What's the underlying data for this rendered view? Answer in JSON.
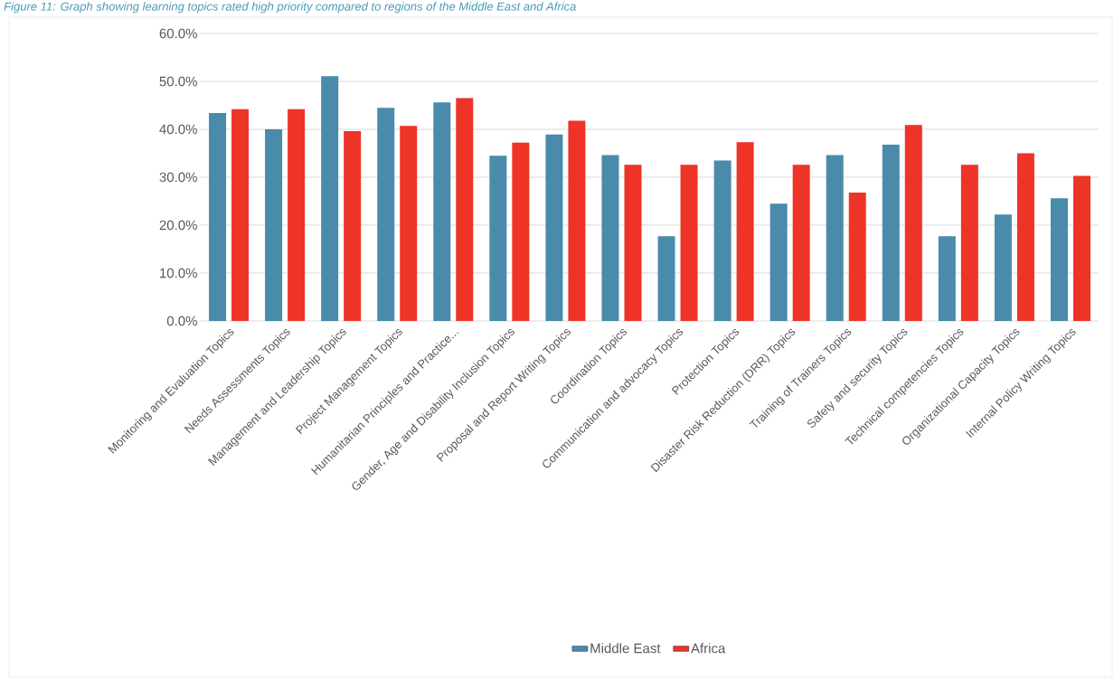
{
  "chart_data": {
    "type": "bar",
    "title": "Figure 11: Graph showing learning topics rated high priority compared to regions of the Middle East and Africa",
    "categories": [
      "Monitoring and Evaluation Topics",
      "Needs Assessments Topics",
      "Management and Leadership Topics",
      "Project Management Topics",
      "Humanitarian Principles and Practice...",
      "Gender, Age and Disability Inclusion Topics",
      "Proposal and Report Writing Topics",
      "Coordination Topics",
      "Communication and advocacy Topics",
      "Protection Topics",
      "Disaster Risk Reduction (DRR) Topics",
      "Training of Trainers Topics",
      "Safety and security Topics",
      "Technical competencies Topics",
      "Organizational Capacity Topics",
      "Internal Policy Writing Topics"
    ],
    "series": [
      {
        "name": "Middle East",
        "color": "#4a8bab",
        "values": [
          43.4,
          40.0,
          51.1,
          44.5,
          45.6,
          34.5,
          38.9,
          34.6,
          17.7,
          33.5,
          24.5,
          34.6,
          36.8,
          17.7,
          22.2,
          25.6
        ]
      },
      {
        "name": "Africa",
        "color": "#ee3327",
        "values": [
          44.2,
          44.2,
          39.6,
          40.7,
          46.5,
          37.2,
          41.8,
          32.6,
          32.6,
          37.3,
          32.6,
          26.8,
          40.9,
          32.6,
          35.0,
          30.3
        ]
      }
    ],
    "ylim": [
      0,
      60
    ],
    "yticks": [
      {
        "value": 0,
        "label": "0.0%"
      },
      {
        "value": 10,
        "label": "10.0%"
      },
      {
        "value": 20,
        "label": "20.0%"
      },
      {
        "value": 30,
        "label": "30.0%"
      },
      {
        "value": 40,
        "label": "40.0%"
      },
      {
        "value": 50,
        "label": "50.0%"
      },
      {
        "value": 60,
        "label": "60.0%"
      }
    ],
    "grid": "y",
    "legend": "bottom"
  }
}
